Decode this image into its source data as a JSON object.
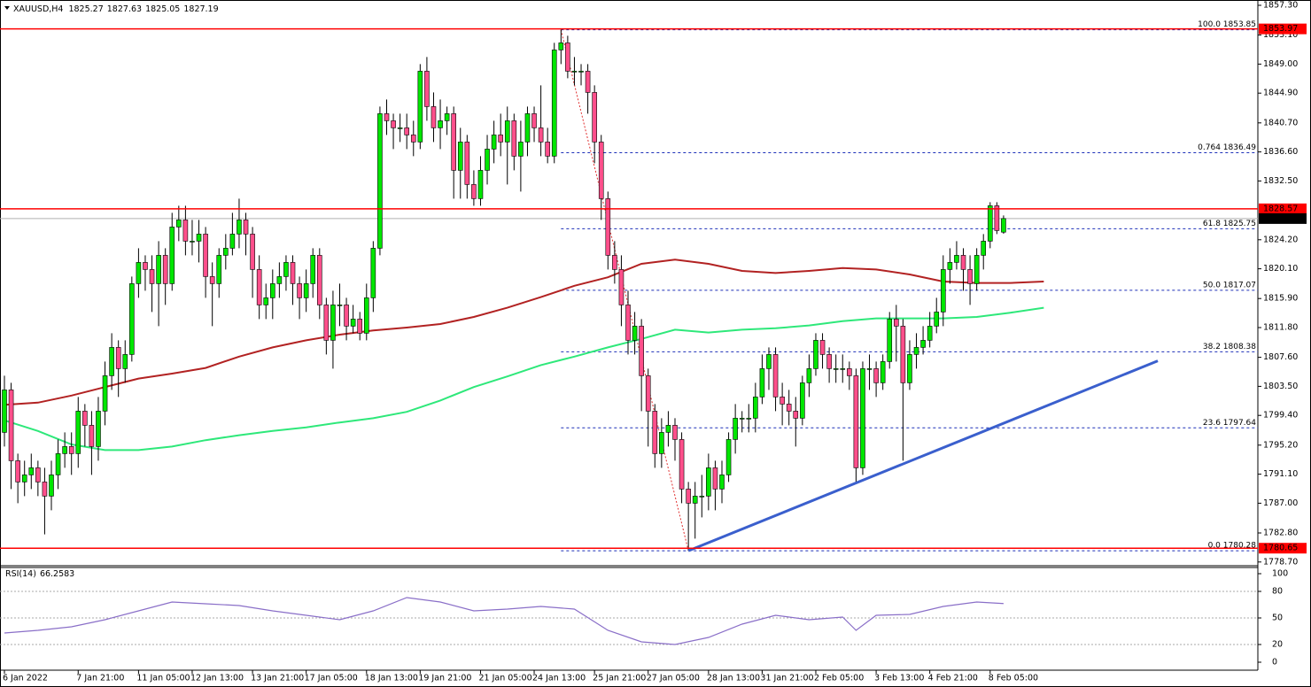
{
  "chart_data": {
    "type": "candlestick",
    "symbol": "XAUUSD,H4",
    "bull_color": "#00e600",
    "bear_color": "#ff4f8b",
    "open": [
      1797,
      1803,
      1793,
      1790,
      1791,
      1792,
      1790,
      1788,
      1791,
      1794,
      1795,
      1794,
      1800,
      1798,
      1795,
      1800,
      1805,
      1809,
      1806,
      1808,
      1818,
      1821,
      1820,
      1818,
      1822,
      1818,
      1826,
      1827,
      1824,
      1824,
      1825,
      1819,
      1818,
      1822,
      1823,
      1825,
      1827,
      1825,
      1820,
      1815,
      1816,
      1818,
      1819,
      1821,
      1818,
      1816,
      1818,
      1822,
      1815,
      1810,
      1815,
      1815,
      1812,
      1813,
      1811,
      1816,
      1823,
      1842,
      1841,
      1840,
      1840,
      1839,
      1838,
      1848,
      1843,
      1840,
      1841,
      1842,
      1834,
      1838,
      1832,
      1830,
      1834,
      1837,
      1839,
      1838,
      1841,
      1836,
      1838,
      1842,
      1840,
      1838,
      1836,
      1851,
      1852,
      1848,
      1848,
      1848,
      1845,
      1838,
      1830,
      1822,
      1820,
      1815,
      1810,
      1812,
      1805,
      1800,
      1794,
      1797,
      1798,
      1796,
      1789,
      1787,
      1788,
      1788,
      1792,
      1789,
      1791,
      1796,
      1799,
      1799,
      1799,
      1802,
      1806,
      1808,
      1802,
      1801,
      1800,
      1799,
      1804,
      1806,
      1810,
      1808,
      1806,
      1806,
      1806,
      1805,
      1792,
      1806,
      1806,
      1804,
      1807,
      1813,
      1812,
      1804,
      1808,
      1809,
      1810,
      1812,
      1814,
      1820,
      1821,
      1822,
      1820,
      1818,
      1822,
      1824,
      1829,
      1825.27
    ],
    "high": [
      1805,
      1804,
      1794,
      1793,
      1794,
      1793,
      1792,
      1793,
      1796,
      1797,
      1797,
      1802,
      1801,
      1800,
      1802,
      1807,
      1811,
      1810,
      1810,
      1819,
      1823,
      1822,
      1822,
      1824,
      1823,
      1828,
      1829,
      1829,
      1827,
      1827,
      1826,
      1821,
      1823,
      1825,
      1828,
      1830,
      1828,
      1826,
      1822,
      1818,
      1820,
      1821,
      1822,
      1822,
      1819,
      1820,
      1823,
      1823,
      1816,
      1817,
      1818,
      1816,
      1815,
      1814,
      1818,
      1824,
      1843,
      1844,
      1842,
      1842,
      1842,
      1841,
      1849,
      1850,
      1845,
      1844,
      1843,
      1843,
      1840,
      1839,
      1834,
      1836,
      1839,
      1841,
      1842,
      1843,
      1842,
      1841,
      1843,
      1843,
      1846,
      1840,
      1852,
      1853.85,
      1853,
      1850,
      1849,
      1849,
      1846,
      1839,
      1831,
      1824,
      1822,
      1817,
      1814,
      1813,
      1806,
      1801,
      1799,
      1800,
      1799,
      1797,
      1790,
      1790,
      1791,
      1794,
      1793,
      1793,
      1797,
      1801,
      1800,
      1801,
      1804,
      1808,
      1809,
      1809,
      1804,
      1803,
      1802,
      1805,
      1808,
      1811,
      1811,
      1809,
      1808,
      1808,
      1807,
      1806,
      1807,
      1808,
      1807,
      1808,
      1814,
      1815,
      1813,
      1810,
      1811,
      1812,
      1814,
      1816,
      1822,
      1823,
      1824,
      1823,
      1822,
      1823,
      1825,
      1829.5,
      1829.5,
      1827.63
    ],
    "low": [
      1795,
      1789,
      1787,
      1788,
      1789,
      1788,
      1782.6,
      1786,
      1789,
      1792,
      1791,
      1792,
      1795,
      1791,
      1793,
      1798,
      1803,
      1802,
      1804,
      1807,
      1816,
      1817,
      1814,
      1812,
      1815,
      1817,
      1824,
      1822,
      1822,
      1821,
      1816,
      1812,
      1816,
      1820,
      1822,
      1823,
      1822,
      1816,
      1813,
      1813,
      1813,
      1816,
      1817,
      1815,
      1813,
      1814,
      1816,
      1813,
      1808,
      1806,
      1812,
      1810,
      1811,
      1810,
      1810,
      1814,
      1822,
      1839,
      1837,
      1838,
      1837,
      1836,
      1837,
      1841,
      1838,
      1837,
      1839,
      1830,
      1830,
      1830,
      1829,
      1829,
      1832,
      1835,
      1836,
      1832,
      1834,
      1831,
      1836,
      1838,
      1836,
      1835,
      1835,
      1849,
      1847,
      1846,
      1846,
      1842,
      1835,
      1827,
      1820,
      1818,
      1812,
      1808,
      1808,
      1800,
      1795,
      1792,
      1792,
      1795,
      1793,
      1787,
      1780.28,
      1782,
      1785,
      1786,
      1786,
      1787,
      1790,
      1794,
      1797,
      1797,
      1797,
      1801,
      1803,
      1800,
      1798,
      1798,
      1795,
      1798,
      1802,
      1805,
      1806,
      1804,
      1804,
      1804,
      1803,
      1790,
      1791,
      1803,
      1802,
      1803,
      1806,
      1807,
      1793,
      1803,
      1806,
      1808,
      1809,
      1811,
      1812,
      1818,
      1820,
      1817,
      1815,
      1817,
      1820,
      1823,
      1825,
      1825.05
    ],
    "close": [
      1803,
      1793,
      1790,
      1791,
      1792,
      1790,
      1788,
      1791,
      1794,
      1795,
      1794,
      1800,
      1798,
      1795,
      1800,
      1805,
      1809,
      1806,
      1808,
      1818,
      1821,
      1820,
      1818,
      1822,
      1818,
      1826,
      1827,
      1824,
      1824,
      1825,
      1819,
      1818,
      1822,
      1823,
      1825,
      1827,
      1825,
      1820,
      1815,
      1816,
      1818,
      1819,
      1821,
      1818,
      1816,
      1818,
      1822,
      1815,
      1810,
      1815,
      1815,
      1812,
      1813,
      1811,
      1816,
      1823,
      1842,
      1841,
      1840,
      1840,
      1839,
      1838,
      1848,
      1843,
      1840,
      1841,
      1842,
      1834,
      1838,
      1832,
      1830,
      1834,
      1837,
      1839,
      1838,
      1841,
      1836,
      1838,
      1842,
      1840,
      1838,
      1836,
      1851,
      1852,
      1848,
      1848,
      1848,
      1845,
      1838,
      1830,
      1822,
      1820,
      1815,
      1810,
      1812,
      1805,
      1800,
      1794,
      1797,
      1798,
      1796,
      1789,
      1787,
      1788,
      1788,
      1792,
      1789,
      1791,
      1796,
      1799,
      1799,
      1799,
      1802,
      1806,
      1808,
      1802,
      1801,
      1800,
      1799,
      1804,
      1806,
      1810,
      1808,
      1806,
      1806,
      1806,
      1805,
      1792,
      1806,
      1806,
      1804,
      1807,
      1813,
      1812,
      1804,
      1808,
      1809,
      1810,
      1812,
      1814,
      1820,
      1821,
      1822,
      1820,
      1818,
      1822,
      1824,
      1829,
      1825.5,
      1827.19
    ],
    "ylim": [
      1778.3,
      1858.05
    ],
    "yticks": [
      {
        "value": 1857.3,
        "label": "1857.30"
      },
      {
        "value": 1853.1,
        "label": "1853.10"
      },
      {
        "value": 1849,
        "label": "1849.00"
      },
      {
        "value": 1844.9,
        "label": "1844.90"
      },
      {
        "value": 1840.7,
        "label": "1840.70"
      },
      {
        "value": 1836.6,
        "label": "1836.60"
      },
      {
        "value": 1832.5,
        "label": "1832.50"
      },
      {
        "value": 1824.2,
        "label": "1824.20"
      },
      {
        "value": 1820.1,
        "label": "1820.10"
      },
      {
        "value": 1815.9,
        "label": "1815.90"
      },
      {
        "value": 1811.8,
        "label": "1811.80"
      },
      {
        "value": 1807.6,
        "label": "1807.60"
      },
      {
        "value": 1803.5,
        "label": "1803.50"
      },
      {
        "value": 1799.4,
        "label": "1799.40"
      },
      {
        "value": 1795.2,
        "label": "1795.20"
      },
      {
        "value": 1791.1,
        "label": "1791.10"
      },
      {
        "value": 1787,
        "label": "1787.00"
      },
      {
        "value": 1782.8,
        "label": "1782.80"
      },
      {
        "value": 1778.7,
        "label": "1778.70"
      }
    ],
    "xticks": [
      {
        "value": 0,
        "label": "6 Jan 2022"
      },
      {
        "value": 11,
        "label": "7 Jan 21:00"
      },
      {
        "value": 20,
        "label": "11 Jan 05:00"
      },
      {
        "value": 28,
        "label": "12 Jan 13:00"
      },
      {
        "value": 37,
        "label": "13 Jan 21:00"
      },
      {
        "value": 45,
        "label": "17 Jan 05:00"
      },
      {
        "value": 54,
        "label": "18 Jan 13:00"
      },
      {
        "value": 62,
        "label": "19 Jan 21:00"
      },
      {
        "value": 71,
        "label": "21 Jan 05:00"
      },
      {
        "value": 79,
        "label": "24 Jan 13:00"
      },
      {
        "value": 88,
        "label": "25 Jan 21:00"
      },
      {
        "value": 96,
        "label": "27 Jan 05:00"
      },
      {
        "value": 105,
        "label": "28 Jan 13:00"
      },
      {
        "value": 113,
        "label": "31 Jan 21:00"
      },
      {
        "value": 121,
        "label": "2 Feb 05:00"
      },
      {
        "value": 130,
        "label": "3 Feb 13:00"
      },
      {
        "value": 138,
        "label": "4 Feb 21:00"
      },
      {
        "value": 147,
        "label": "8 Feb 05:00"
      }
    ],
    "price_levels": [
      {
        "value": 1853.97,
        "color": "#ff0000"
      },
      {
        "value": 1828.57,
        "color": "#ff0000"
      },
      {
        "value": 1780.65,
        "color": "#ff0000"
      }
    ],
    "current_price": {
      "value": 1827.19,
      "color": "#b0b0b0"
    },
    "moving_averages": [
      {
        "color": "#b22222",
        "x": [
          0,
          5,
          10,
          15,
          20,
          25,
          30,
          35,
          40,
          45,
          50,
          55,
          60,
          65,
          70,
          75,
          80,
          85,
          90,
          95,
          100,
          105,
          110,
          115,
          120,
          125,
          130,
          135,
          140,
          145,
          150,
          155
        ],
        "values": [
          1800.9,
          1801.2,
          1802.2,
          1803.4,
          1804.6,
          1805.3,
          1806.1,
          1807.7,
          1809.0,
          1810.0,
          1810.8,
          1811.4,
          1811.8,
          1812.3,
          1813.3,
          1814.6,
          1816.1,
          1817.7,
          1818.9,
          1820.8,
          1821.4,
          1820.8,
          1819.8,
          1819.5,
          1819.8,
          1820.2,
          1820.0,
          1819.3,
          1818.3,
          1818.1,
          1818.1,
          1818.3
        ]
      },
      {
        "color": "#2ee87a",
        "x": [
          0,
          5,
          10,
          15,
          20,
          25,
          30,
          35,
          40,
          45,
          50,
          55,
          60,
          65,
          70,
          75,
          80,
          85,
          90,
          95,
          100,
          105,
          110,
          115,
          120,
          125,
          130,
          135,
          140,
          145,
          150,
          155
        ],
        "values": [
          1798.7,
          1797.2,
          1795.3,
          1794.5,
          1794.5,
          1795.0,
          1795.9,
          1796.6,
          1797.2,
          1797.7,
          1798.4,
          1799.0,
          1799.9,
          1801.5,
          1803.4,
          1804.9,
          1806.5,
          1807.7,
          1809.0,
          1810.2,
          1811.5,
          1811.1,
          1811.5,
          1811.7,
          1812.1,
          1812.7,
          1813.1,
          1813.1,
          1813.1,
          1813.3,
          1813.9,
          1814.6
        ]
      }
    ],
    "trendline": {
      "color": "#3a5fcd",
      "x": [
        102,
        172
      ],
      "values": [
        1780.28,
        1807.1
      ]
    },
    "fibonacci": {
      "color": "#1c2fb8",
      "x": [
        83,
        102
      ],
      "levels": [
        {
          "value": 1853.85,
          "label": "100.0 1853.85"
        },
        {
          "value": 1836.49,
          "label": "0.764 1836.49"
        },
        {
          "value": 1825.75,
          "label": "61.8 1825.75"
        },
        {
          "value": 1817.07,
          "label": "50.0 1817.07"
        },
        {
          "value": 1808.38,
          "label": "38.2 1808.38"
        },
        {
          "value": 1797.64,
          "label": "23.6 1797.64"
        },
        {
          "value": 1780.28,
          "label": "0.0 1780.28"
        }
      ]
    },
    "rsi": {
      "name": "RSI(14)",
      "color": "#8a6fc8",
      "ylim": [
        0,
        100
      ],
      "yticks": [
        100,
        80,
        50,
        20,
        0
      ],
      "x": [
        0,
        5,
        10,
        15,
        20,
        25,
        30,
        35,
        40,
        45,
        50,
        55,
        60,
        65,
        70,
        75,
        80,
        85,
        90,
        95,
        100,
        105,
        110,
        115,
        120,
        125,
        127,
        130,
        135,
        140,
        145,
        149
      ],
      "values": [
        33,
        36,
        40,
        48,
        58,
        68,
        66,
        64,
        58,
        53,
        48,
        58,
        73,
        68,
        58,
        60,
        63,
        60,
        36,
        23,
        20,
        28,
        43,
        53,
        48,
        51,
        36,
        53,
        54,
        63,
        68,
        66.2583
      ]
    }
  }
}
